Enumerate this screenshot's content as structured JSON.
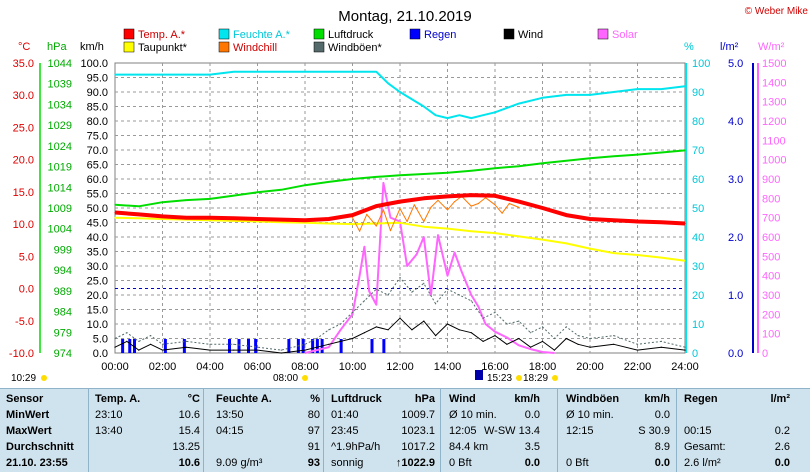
{
  "chart_data": {
    "type": "line",
    "title": "Montag, 21.10.2019",
    "copyright": "© Weber Mike",
    "axis_units": {
      "temp": "°C",
      "pressure": "hPa",
      "wind": "km/h",
      "humidity": "%",
      "rain": "l/m²",
      "solar": "W/m²"
    },
    "ylim": {
      "temp": [
        -10,
        35
      ],
      "pressure": [
        974,
        1044
      ],
      "wind": [
        0,
        100
      ],
      "humidity": [
        0,
        100
      ],
      "rain": [
        0,
        5
      ],
      "solar": [
        0,
        1500
      ]
    },
    "x_ticks": [
      "00:00",
      "02:00",
      "04:00",
      "06:00",
      "08:00",
      "10:00",
      "12:00",
      "14:00",
      "16:00",
      "18:00",
      "20:00",
      "22:00",
      "24:00"
    ],
    "temp_ticks": [
      "35.0",
      "30.0",
      "25.0",
      "20.0",
      "15.0",
      "10.0",
      "5.0",
      "0.0",
      "-5.0",
      "-10.0"
    ],
    "pressure_ticks": [
      "1044",
      "1039",
      "1034",
      "1029",
      "1024",
      "1019",
      "1014",
      "1009",
      "1004",
      "999",
      "994",
      "989",
      "984",
      "979",
      "974"
    ],
    "wind_ticks": [
      "100.0",
      "95.0",
      "90.0",
      "85.0",
      "80.0",
      "75.0",
      "70.0",
      "65.0",
      "60.0",
      "55.0",
      "50.0",
      "45.0",
      "40.0",
      "35.0",
      "30.0",
      "25.0",
      "20.0",
      "15.0",
      "10.0",
      "5.0",
      "0.0"
    ],
    "humidity_ticks": [
      "100",
      "90",
      "80",
      "70",
      "60",
      "50",
      "40",
      "30",
      "20",
      "10",
      "0"
    ],
    "rain_ticks": [
      "5.0",
      "4.0",
      "3.0",
      "2.0",
      "1.0",
      "0.0"
    ],
    "solar_ticks": [
      "1500",
      "1400",
      "1300",
      "1200",
      "1100",
      "1000",
      "900",
      "800",
      "700",
      "600",
      "500",
      "400",
      "300",
      "200",
      "100",
      "0"
    ],
    "legend": [
      {
        "label": "Temp. A.*",
        "color": "#ff0000"
      },
      {
        "label": "Feuchte A.*",
        "color": "#00e5ee"
      },
      {
        "label": "Luftdruck",
        "color": "#00dd00"
      },
      {
        "label": "Regen",
        "color": "#0000ff"
      },
      {
        "label": "Wind",
        "color": "#000000"
      },
      {
        "label": "Solar",
        "color": "#ff66ff"
      },
      {
        "label": "Taupunkt*",
        "color": "#ffff00"
      },
      {
        "label": "Windchill",
        "color": "#ff7700"
      },
      {
        "label": "Windböen*",
        "color": "#556b6b"
      }
    ],
    "series": [
      {
        "name": "Temp. A.",
        "axis": "temp",
        "color": "#ff0000",
        "x": [
          0,
          1,
          2,
          3,
          4,
          5,
          6,
          7,
          8,
          9,
          10,
          11,
          12,
          13,
          14,
          15,
          16,
          17,
          18,
          19,
          20,
          21,
          22,
          23,
          24
        ],
        "values": [
          11.8,
          11.5,
          11.2,
          11.0,
          11.0,
          10.9,
          10.8,
          10.7,
          10.6,
          10.8,
          11.4,
          12.8,
          13.5,
          14.0,
          14.3,
          14.5,
          14.4,
          13.5,
          12.5,
          11.4,
          10.8,
          10.6,
          10.4,
          10.3,
          10.1
        ]
      },
      {
        "name": "Feuchte A.",
        "axis": "humidity",
        "color": "#00e5ee",
        "x": [
          0,
          2,
          4,
          5,
          6,
          7,
          8,
          9,
          10,
          11,
          11.5,
          12,
          13,
          13.5,
          14,
          14.5,
          15,
          15.5,
          16,
          17,
          18,
          19,
          20,
          21,
          22,
          23,
          24
        ],
        "values": [
          96,
          96,
          96,
          97,
          97,
          97,
          97,
          97,
          97,
          97,
          93,
          90,
          85,
          82,
          81,
          82,
          81,
          82,
          83,
          86,
          88,
          89,
          89,
          90,
          91,
          91,
          92
        ]
      },
      {
        "name": "Luftdruck",
        "axis": "pressure",
        "color": "#00dd00",
        "x": [
          0,
          1,
          2,
          3,
          4,
          5,
          6,
          7,
          8,
          9,
          10,
          11,
          12,
          13,
          14,
          15,
          16,
          17,
          18,
          19,
          20,
          21,
          22,
          23,
          24
        ],
        "values": [
          1009.8,
          1009.4,
          1010.4,
          1010.9,
          1011.2,
          1012.0,
          1012.8,
          1013.4,
          1014.5,
          1015.3,
          1016.0,
          1016.5,
          1016.9,
          1017.2,
          1017.5,
          1018.0,
          1018.6,
          1019.1,
          1019.8,
          1020.4,
          1021.0,
          1021.5,
          1021.9,
          1022.4,
          1022.9
        ]
      },
      {
        "name": "Taupunkt",
        "axis": "temp",
        "color": "#ffff00",
        "x": [
          0,
          1,
          2,
          3,
          4,
          5,
          6,
          7,
          8,
          9,
          10,
          11,
          12,
          13,
          14,
          15,
          16,
          17,
          18,
          19,
          20,
          21,
          22,
          23,
          24
        ],
        "values": [
          11.0,
          10.9,
          10.8,
          10.7,
          10.6,
          10.5,
          10.4,
          10.3,
          10.2,
          10.1,
          10.0,
          10.1,
          10.2,
          9.6,
          9.3,
          8.9,
          8.6,
          8.1,
          7.6,
          7.0,
          6.2,
          5.5,
          5.2,
          4.8,
          4.3
        ]
      },
      {
        "name": "Windchill",
        "axis": "temp",
        "color": "#ff7700",
        "x": [
          10,
          10.3,
          10.6,
          11,
          11.3,
          11.6,
          12,
          12.3,
          12.6,
          13,
          13.3,
          13.6,
          14,
          14.3,
          14.6,
          15,
          15.3,
          15.6,
          16,
          16.3,
          16.6,
          17
        ],
        "values": [
          11.0,
          8.9,
          11.5,
          9.7,
          12.2,
          9.0,
          12.4,
          10.4,
          13.0,
          10.4,
          12.6,
          13.7,
          12.2,
          13.5,
          14.3,
          12.8,
          13.2,
          14.1,
          13.0,
          11.7,
          13.2,
          12.6
        ]
      },
      {
        "name": "Wind",
        "axis": "wind",
        "color": "#000000",
        "x": [
          0,
          0.5,
          1,
          1.5,
          2,
          3,
          4,
          5,
          6,
          7,
          8,
          8.5,
          9,
          9.5,
          10,
          10.5,
          11,
          11.5,
          12,
          12.5,
          13,
          13.5,
          14,
          14.5,
          15,
          15.5,
          16,
          16.5,
          17,
          17.5,
          18,
          18.5,
          19,
          19.5,
          20,
          21,
          22,
          23,
          24
        ],
        "values": [
          2,
          4,
          1,
          3,
          1,
          2,
          1,
          1,
          1,
          0,
          1,
          2,
          3,
          4,
          5,
          7,
          9,
          8,
          12,
          8,
          11,
          6,
          10,
          8,
          7,
          4,
          6,
          3,
          5,
          2,
          4,
          1,
          5,
          3,
          2,
          3,
          1,
          2,
          1
        ]
      },
      {
        "name": "Windböen",
        "axis": "wind",
        "color": "#556b6b",
        "x": [
          0,
          0.5,
          1,
          1.5,
          2,
          3,
          4,
          5,
          6,
          7,
          8,
          8.5,
          9,
          9.5,
          10,
          10.5,
          11,
          11.5,
          12,
          12.5,
          13,
          13.5,
          14,
          14.5,
          15,
          15.5,
          16,
          16.5,
          17,
          17.5,
          18,
          18.5,
          19,
          19.5,
          20,
          21,
          22,
          23,
          24
        ],
        "values": [
          5,
          7,
          4,
          6,
          3,
          4,
          3,
          3,
          2,
          1,
          3,
          5,
          8,
          10,
          14,
          18,
          22,
          20,
          26,
          21,
          24,
          17,
          22,
          20,
          18,
          12,
          14,
          10,
          11,
          7,
          9,
          5,
          9,
          6,
          5,
          6,
          3,
          4,
          2
        ]
      },
      {
        "name": "Solar",
        "axis": "solar",
        "color": "#ff66ff",
        "x": [
          8,
          9,
          9.5,
          10,
          10.3,
          10.5,
          10.7,
          11,
          11.3,
          11.6,
          12,
          12.3,
          12.7,
          13,
          13.3,
          13.6,
          14,
          14.3,
          14.6,
          15,
          15.3,
          15.6,
          16,
          16.5,
          17,
          17.5,
          18,
          18.5
        ],
        "values": [
          0,
          30,
          120,
          200,
          400,
          550,
          320,
          250,
          880,
          700,
          680,
          450,
          510,
          600,
          300,
          610,
          400,
          520,
          420,
          300,
          240,
          150,
          110,
          80,
          40,
          20,
          5,
          0
        ]
      }
    ],
    "rain_bars_hours": [
      0.3,
      0.6,
      0.8,
      2.1,
      2.9,
      4.8,
      5.2,
      5.6,
      5.9,
      7.3,
      7.7,
      7.9,
      8.3,
      8.5,
      8.7,
      9.5,
      10.8,
      11.3
    ],
    "time_markers": [
      {
        "label": "10:29",
        "pos": "left-below-axis"
      },
      {
        "label": "08:00",
        "pos": "sunrise"
      },
      {
        "label": "15:23",
        "pos": "noon"
      },
      {
        "label": "18:29",
        "pos": "sunset"
      }
    ],
    "grid": true
  },
  "table": {
    "headers": [
      "Sensor",
      "Temp. A.",
      "°C",
      "Feuchte A.",
      "%",
      "Luftdruck",
      "hPa",
      "Wind",
      "km/h",
      "Windböen",
      "km/h",
      "Regen",
      "l/m²"
    ],
    "rows": [
      {
        "label": "MinWert",
        "cells": [
          "23:10",
          "10.6",
          "13:50",
          "80",
          "01:40",
          "1009.7",
          "Ø 10 min.",
          "0.0",
          "Ø 10 min.",
          "0.0",
          "",
          ""
        ]
      },
      {
        "label": "MaxWert",
        "cells": [
          "13:40",
          "15.4",
          "04:15",
          "97",
          "23:45",
          "1023.1",
          "12:05",
          "W-SW 13.4",
          "12:15",
          "S 30.9",
          "00:15",
          "0.2"
        ]
      },
      {
        "label": "Durchschnitt",
        "cells": [
          "",
          "13.25",
          "",
          "91",
          "^1.9hPa/h",
          "1017.2",
          "84.4 km",
          "3.5",
          "",
          "8.9",
          "Gesamt:",
          "2.6"
        ]
      },
      {
        "label": "21.10. 23:55",
        "cells": [
          "",
          "10.6",
          "9.09 g/m³",
          "93",
          "sonnig",
          "↑1022.9",
          "0 Bft",
          "0.0",
          "0 Bft",
          "0.0",
          "2.6 l/m²",
          "0.0"
        ]
      }
    ]
  }
}
